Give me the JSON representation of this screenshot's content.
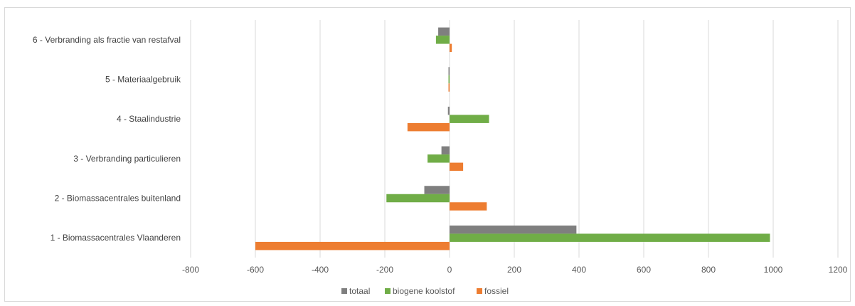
{
  "chart_data": {
    "type": "bar",
    "orientation": "horizontal",
    "categories": [
      "6 - Verbranding als fractie van restafval",
      "5 - Materiaalgebruik",
      "4 - Staalindustrie",
      "3 - Verbranding particulieren",
      "2 - Biomassacentrales buitenland",
      "1 - Biomassacentrales Vlaanderen"
    ],
    "series": [
      {
        "name": "totaal",
        "color": "#7f7f7f",
        "values": [
          -35,
          -2,
          -5,
          -25,
          -78,
          392
        ]
      },
      {
        "name": "biogene koolstof",
        "color": "#70ad47",
        "values": [
          -42,
          -1,
          122,
          -68,
          -195,
          990
        ]
      },
      {
        "name": "fossiel",
        "color": "#ed7d31",
        "values": [
          7,
          -2,
          -130,
          42,
          115,
          -600
        ]
      }
    ],
    "x_ticks": [
      "-800",
      "-600",
      "-400",
      "-200",
      "0",
      "200",
      "400",
      "600",
      "800",
      "1000",
      "1200"
    ],
    "xlim": [
      -800,
      1200
    ],
    "grid": "vertical",
    "legend_position": "bottom",
    "title": "",
    "xlabel": "",
    "ylabel": ""
  }
}
